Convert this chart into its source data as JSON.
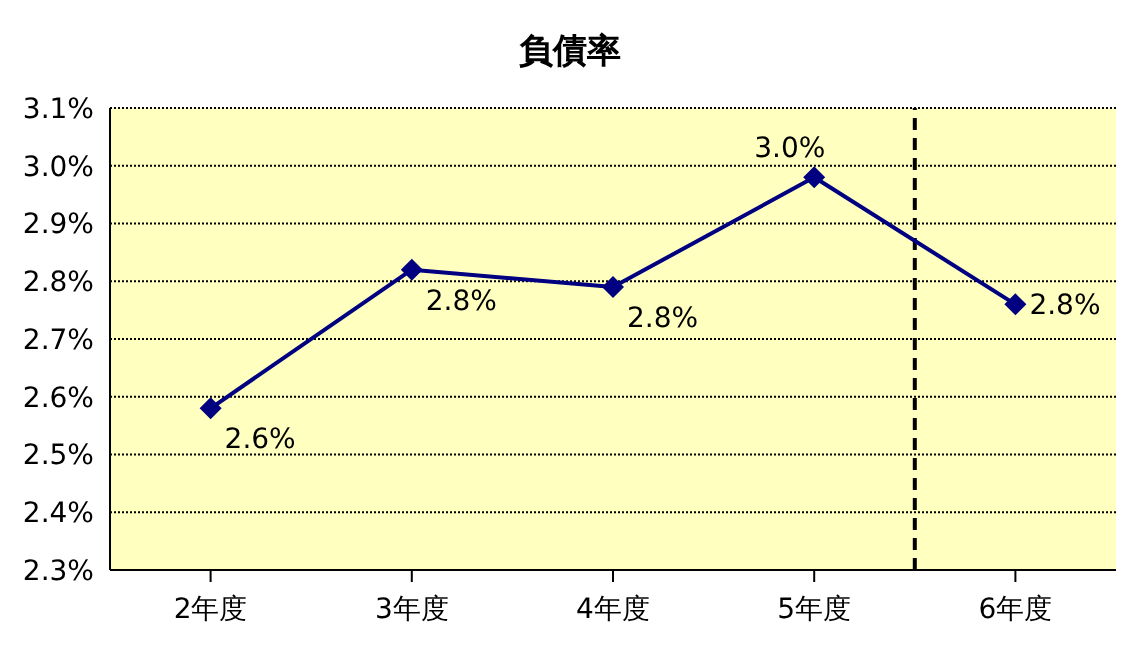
{
  "chart_data": {
    "type": "line",
    "title": "負債率",
    "x": [
      2,
      3,
      4,
      5,
      6
    ],
    "xlim": [
      1.5,
      6.5
    ],
    "xticks": [
      {
        "value": 2,
        "label": "2年度"
      },
      {
        "value": 3,
        "label": "3年度"
      },
      {
        "value": 4,
        "label": "4年度"
      },
      {
        "value": 5,
        "label": "5年度"
      },
      {
        "value": 6,
        "label": "6年度"
      }
    ],
    "series": [
      {
        "color": "#000080",
        "values": [
          2.58,
          2.82,
          2.79,
          2.98,
          2.76
        ],
        "value_labels": [
          "2.6%",
          "2.8%",
          "2.8%",
          "3.0%",
          "2.8%"
        ]
      }
    ],
    "ylim": [
      2.3,
      3.1
    ],
    "yticks": [
      {
        "value": 2.3,
        "label": "2.3%"
      },
      {
        "value": 2.4,
        "label": "2.4%"
      },
      {
        "value": 2.5,
        "label": "2.5%"
      },
      {
        "value": 2.6,
        "label": "2.6%"
      },
      {
        "value": 2.7,
        "label": "2.7%"
      },
      {
        "value": 2.8,
        "label": "2.8%"
      },
      {
        "value": 2.9,
        "label": "2.9%"
      },
      {
        "value": 3.0,
        "label": "3.0%"
      },
      {
        "value": 3.1,
        "label": "3.1%"
      }
    ],
    "ref_lines": [
      {
        "axis": "x",
        "value": 5.5,
        "color": "#000000",
        "line_style": "dashed"
      }
    ],
    "grid": "y",
    "marker": "diamond",
    "line_style": "solid",
    "legend": false
  }
}
